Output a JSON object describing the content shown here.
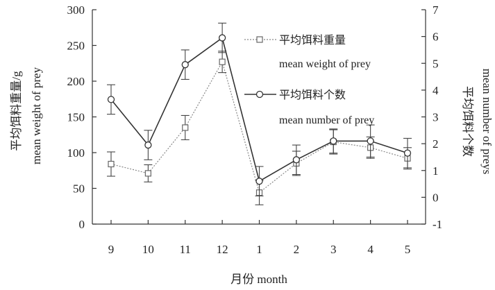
{
  "chart_data": {
    "type": "line",
    "categories": [
      "9",
      "10",
      "11",
      "12",
      "1",
      "2",
      "3",
      "4",
      "5"
    ],
    "xlabel": "月份  month",
    "ylabel_left_cn": "平均饵料重量/g",
    "ylabel_left_en": "mean weight of prey",
    "ylabel_right_cn": "平均饵料个数",
    "ylabel_right_en": "mean number of preys",
    "ylim_left": [
      0,
      300
    ],
    "yticks_left": [
      0,
      50,
      100,
      150,
      200,
      250,
      300
    ],
    "ylim_right": [
      -1,
      7
    ],
    "yticks_right": [
      -1,
      0,
      1,
      2,
      3,
      4,
      5,
      6,
      7
    ],
    "grid": false,
    "legend_position": "top-right",
    "series": [
      {
        "name_cn": "平均饵料重量",
        "name_en": "mean weight of prey",
        "axis": "left",
        "marker": "square",
        "line_style": "dotted",
        "color": "#888888",
        "values": [
          84,
          71,
          135,
          227,
          44,
          85,
          115,
          107,
          92
        ],
        "errors": [
          17,
          12,
          17,
          15,
          17,
          17,
          17,
          15,
          15
        ]
      },
      {
        "name_cn": "平均饵料个数",
        "name_en": "mean number of prey",
        "axis": "right",
        "marker": "circle",
        "line_style": "solid",
        "color": "#333333",
        "values": [
          3.65,
          1.95,
          4.95,
          5.95,
          0.6,
          1.4,
          2.1,
          2.1,
          1.65
        ],
        "errors": [
          0.55,
          0.55,
          0.55,
          0.55,
          0.55,
          0.55,
          0.45,
          0.6,
          0.55
        ]
      }
    ]
  }
}
